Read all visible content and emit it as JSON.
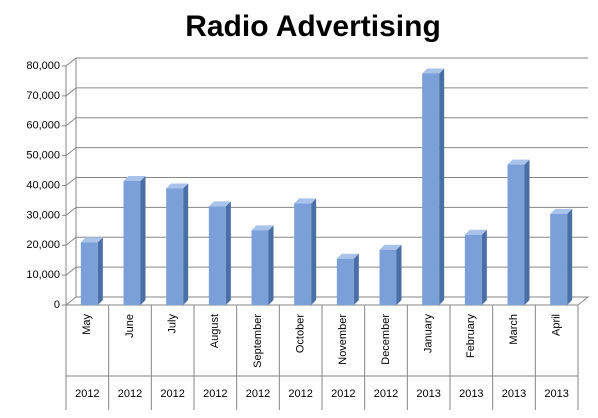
{
  "chart_data": {
    "type": "bar",
    "title": "Radio Advertising",
    "categories": [
      "May",
      "June",
      "July",
      "August",
      "September",
      "October",
      "November",
      "December",
      "January",
      "February",
      "March",
      "April"
    ],
    "years": [
      "2012",
      "2012",
      "2012",
      "2012",
      "2012",
      "2012",
      "2012",
      "2012",
      "2013",
      "2013",
      "2013",
      "2013"
    ],
    "values": [
      21000,
      41500,
      39000,
      33000,
      25000,
      34000,
      15500,
      18500,
      77500,
      23500,
      47000,
      30500
    ],
    "color": "#7b9fd8",
    "ylim": [
      0,
      80000
    ],
    "yticks": [
      0,
      {
        "value": 10000,
        "label": "10,000"
      },
      {
        "value": 20000,
        "label": "20,000"
      },
      {
        "value": 30000,
        "label": "30,000"
      },
      {
        "value": 40000,
        "label": "40,000"
      },
      {
        "value": 50000,
        "label": "50,000"
      },
      {
        "value": 60000,
        "label": "60,000"
      },
      {
        "value": 70000,
        "label": "70,000"
      },
      {
        "value": 80000,
        "label": "80,000"
      }
    ],
    "grid": true
  }
}
